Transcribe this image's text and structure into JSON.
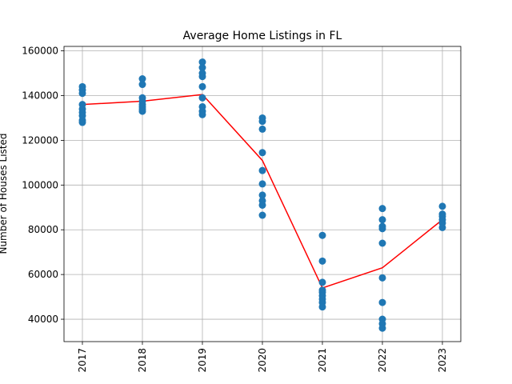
{
  "chart_data": {
    "type": "scatter",
    "title": "Average Home Listings in FL",
    "xlabel": "",
    "ylabel": "Number of Houses Listed",
    "categories": [
      "2017",
      "2018",
      "2019",
      "2020",
      "2021",
      "2022",
      "2023"
    ],
    "ylim": [
      30000,
      162000
    ],
    "yticks": [
      40000,
      60000,
      80000,
      100000,
      120000,
      140000,
      160000
    ],
    "grid": true,
    "x_tick_rotation": "vertical",
    "scatter": {
      "color": "#1f77b4",
      "points": [
        [
          144000,
          142500,
          141000,
          136000,
          134000,
          132500,
          131000,
          129000,
          128000
        ],
        [
          147500,
          145000,
          139000,
          137500,
          136000,
          135000,
          134000,
          133000
        ],
        [
          155000,
          152500,
          150000,
          148500,
          144000,
          139000,
          135000,
          133000,
          131500
        ],
        [
          130000,
          128500,
          125000,
          114500,
          106500,
          100500,
          95500,
          93000,
          91000,
          86500
        ],
        [
          77500,
          66000,
          56500,
          53000,
          52000,
          50500,
          49000,
          47500,
          45500
        ],
        [
          89500,
          84500,
          81500,
          80500,
          74000,
          58500,
          47500,
          40000,
          38000,
          36000
        ],
        [
          90500,
          87000,
          86000,
          84500,
          83000,
          81000
        ]
      ]
    },
    "line": {
      "color": "#ff0000",
      "values": [
        136000,
        137500,
        140500,
        111000,
        54000,
        63000,
        84500
      ]
    }
  }
}
